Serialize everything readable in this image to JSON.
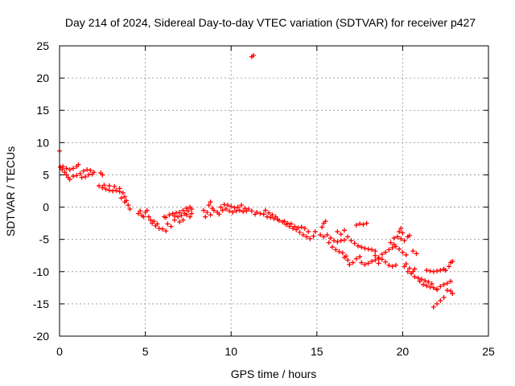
{
  "chart_data": {
    "type": "scatter",
    "title": "Day 214 of 2024, Sidereal Day-to-day VTEC variation (SDTVAR) for receiver p427",
    "xlabel": "GPS time / hours",
    "ylabel": "SDTVAR / TECUs",
    "xlim": [
      0,
      25
    ],
    "ylim": [
      -20,
      25
    ],
    "xticks": [
      0,
      5,
      10,
      15,
      20,
      25
    ],
    "yticks": [
      -20,
      -15,
      -10,
      -5,
      0,
      5,
      10,
      15,
      20,
      25
    ],
    "grid": true,
    "marker": "+",
    "color": "#ff0000",
    "series": [
      {
        "name": "p427",
        "points": [
          [
            0.0,
            8.7
          ],
          [
            0.05,
            6.2
          ],
          [
            0.15,
            5.8
          ],
          [
            0.3,
            5.4
          ],
          [
            0.4,
            5.0
          ],
          [
            0.5,
            4.6
          ],
          [
            0.6,
            4.3
          ],
          [
            0.2,
            6.3
          ],
          [
            0.4,
            6.0
          ],
          [
            0.6,
            5.8
          ],
          [
            0.8,
            6.0
          ],
          [
            1.0,
            6.3
          ],
          [
            1.1,
            6.6
          ],
          [
            0.8,
            4.8
          ],
          [
            1.0,
            4.9
          ],
          [
            1.2,
            5.2
          ],
          [
            1.4,
            5.6
          ],
          [
            1.6,
            5.8
          ],
          [
            1.8,
            5.7
          ],
          [
            2.0,
            5.4
          ],
          [
            1.3,
            4.6
          ],
          [
            1.5,
            4.7
          ],
          [
            1.7,
            5.0
          ],
          [
            1.9,
            5.1
          ],
          [
            2.4,
            5.3
          ],
          [
            2.5,
            5.0
          ],
          [
            2.3,
            3.3
          ],
          [
            2.5,
            3.0
          ],
          [
            2.7,
            2.8
          ],
          [
            2.9,
            2.6
          ],
          [
            3.1,
            2.5
          ],
          [
            3.3,
            2.6
          ],
          [
            3.5,
            2.4
          ],
          [
            2.6,
            3.4
          ],
          [
            2.9,
            3.3
          ],
          [
            3.2,
            3.2
          ],
          [
            3.5,
            2.9
          ],
          [
            3.7,
            2.2
          ],
          [
            3.8,
            1.6
          ],
          [
            3.9,
            1.0
          ],
          [
            4.0,
            0.3
          ],
          [
            4.1,
            -0.3
          ],
          [
            3.6,
            1.4
          ],
          [
            3.8,
            0.8
          ],
          [
            4.6,
            -1.0
          ],
          [
            4.7,
            -0.6
          ],
          [
            4.8,
            -1.3
          ],
          [
            4.9,
            -1.5
          ],
          [
            5.0,
            -0.8
          ],
          [
            5.1,
            -0.5
          ],
          [
            5.2,
            -1.5
          ],
          [
            5.3,
            -2.0
          ],
          [
            5.4,
            -2.5
          ],
          [
            5.6,
            -2.9
          ],
          [
            5.8,
            -3.3
          ],
          [
            6.0,
            -3.4
          ],
          [
            6.2,
            -3.7
          ],
          [
            5.5,
            -2.2
          ],
          [
            5.7,
            -2.6
          ],
          [
            6.1,
            -1.5
          ],
          [
            6.3,
            -2.6
          ],
          [
            6.5,
            -3.0
          ],
          [
            6.7,
            -2.0
          ],
          [
            6.2,
            -1.6
          ],
          [
            6.4,
            -1.2
          ],
          [
            6.6,
            -1.0
          ],
          [
            6.8,
            -0.9
          ],
          [
            7.0,
            -0.8
          ],
          [
            7.2,
            -0.5
          ],
          [
            7.4,
            -0.2
          ],
          [
            6.7,
            -1.4
          ],
          [
            6.9,
            -1.5
          ],
          [
            7.1,
            -1.3
          ],
          [
            7.3,
            -1.0
          ],
          [
            7.5,
            -0.6
          ],
          [
            7.6,
            0.0
          ],
          [
            7.7,
            -1.0
          ],
          [
            7.0,
            -2.3
          ],
          [
            7.2,
            -2.0
          ],
          [
            7.4,
            -1.2
          ],
          [
            7.6,
            -1.5
          ],
          [
            7.7,
            -0.3
          ],
          [
            8.4,
            -0.5
          ],
          [
            8.5,
            -1.5
          ],
          [
            8.6,
            -0.8
          ],
          [
            8.8,
            -1.2
          ],
          [
            9.0,
            -0.5
          ],
          [
            9.2,
            -0.8
          ],
          [
            8.7,
            0.3
          ],
          [
            8.8,
            0.8
          ],
          [
            8.9,
            -0.2
          ],
          [
            9.3,
            -1.1
          ],
          [
            9.5,
            -0.5
          ],
          [
            9.7,
            -0.3
          ],
          [
            9.4,
            0.0
          ],
          [
            9.6,
            0.4
          ],
          [
            9.8,
            0.3
          ],
          [
            10.0,
            0.1
          ],
          [
            10.2,
            -0.1
          ],
          [
            10.4,
            0.0
          ],
          [
            9.9,
            -0.6
          ],
          [
            10.1,
            -0.8
          ],
          [
            10.3,
            -0.6
          ],
          [
            10.5,
            -0.5
          ],
          [
            10.7,
            -0.7
          ],
          [
            10.9,
            -0.6
          ],
          [
            10.6,
            0.3
          ],
          [
            10.8,
            -0.2
          ],
          [
            11.0,
            -0.3
          ],
          [
            11.2,
            -0.6
          ],
          [
            11.4,
            -1.1
          ],
          [
            11.5,
            -0.8
          ],
          [
            11.2,
            23.3
          ],
          [
            11.3,
            23.5
          ],
          [
            11.7,
            -1.0
          ],
          [
            11.9,
            -1.1
          ],
          [
            12.1,
            -1.5
          ],
          [
            12.3,
            -1.6
          ],
          [
            12.5,
            -1.8
          ],
          [
            12.7,
            -1.9
          ],
          [
            12.0,
            -0.5
          ],
          [
            12.2,
            -0.9
          ],
          [
            12.4,
            -1.2
          ],
          [
            12.6,
            -1.5
          ],
          [
            12.8,
            -2.1
          ],
          [
            13.0,
            -2.3
          ],
          [
            13.1,
            -2.2
          ],
          [
            13.3,
            -2.5
          ],
          [
            13.5,
            -2.6
          ],
          [
            13.7,
            -3.0
          ],
          [
            13.9,
            -3.2
          ],
          [
            14.1,
            -3.1
          ],
          [
            13.2,
            -2.7
          ],
          [
            13.4,
            -3.0
          ],
          [
            13.6,
            -3.3
          ],
          [
            13.8,
            -3.5
          ],
          [
            14.0,
            -3.9
          ],
          [
            14.2,
            -4.3
          ],
          [
            14.3,
            -3.3
          ],
          [
            14.4,
            -4.6
          ],
          [
            14.6,
            -4.9
          ],
          [
            14.8,
            -4.5
          ],
          [
            14.9,
            -3.8
          ],
          [
            14.5,
            -3.8
          ],
          [
            15.3,
            -3.1
          ],
          [
            15.4,
            -2.5
          ],
          [
            15.5,
            -2.2
          ],
          [
            15.2,
            -4.3
          ],
          [
            15.4,
            -4.6
          ],
          [
            15.6,
            -4.3
          ],
          [
            15.8,
            -4.8
          ],
          [
            16.0,
            -5.2
          ],
          [
            16.2,
            -5.4
          ],
          [
            16.4,
            -5.2
          ],
          [
            16.6,
            -5.1
          ],
          [
            15.7,
            -5.5
          ],
          [
            15.9,
            -6.2
          ],
          [
            16.1,
            -6.6
          ],
          [
            16.3,
            -6.9
          ],
          [
            16.5,
            -7.1
          ],
          [
            16.7,
            -7.6
          ],
          [
            16.2,
            -3.8
          ],
          [
            16.4,
            -4.2
          ],
          [
            16.6,
            -3.6
          ],
          [
            16.8,
            -4.6
          ],
          [
            17.0,
            -5.2
          ],
          [
            17.2,
            -5.6
          ],
          [
            16.6,
            -7.8
          ],
          [
            16.8,
            -8.2
          ],
          [
            16.9,
            -8.9
          ],
          [
            17.1,
            -8.6
          ],
          [
            17.3,
            -8.0
          ],
          [
            17.5,
            -7.7
          ],
          [
            17.4,
            -6.0
          ],
          [
            17.6,
            -6.2
          ],
          [
            17.8,
            -6.4
          ],
          [
            18.0,
            -6.5
          ],
          [
            18.2,
            -6.6
          ],
          [
            18.4,
            -6.8
          ],
          [
            17.6,
            -8.6
          ],
          [
            17.8,
            -8.9
          ],
          [
            18.0,
            -8.7
          ],
          [
            18.2,
            -8.4
          ],
          [
            18.4,
            -8.2
          ],
          [
            18.6,
            -8.0
          ],
          [
            17.3,
            -2.8
          ],
          [
            17.5,
            -2.6
          ],
          [
            17.7,
            -2.7
          ],
          [
            17.9,
            -2.5
          ],
          [
            18.4,
            -7.5
          ],
          [
            18.6,
            -7.8
          ],
          [
            18.8,
            -7.3
          ],
          [
            19.0,
            -7.0
          ],
          [
            19.2,
            -6.6
          ],
          [
            19.4,
            -6.3
          ],
          [
            18.6,
            -8.7
          ],
          [
            18.8,
            -8.1
          ],
          [
            19.0,
            -8.5
          ],
          [
            19.2,
            -9.0
          ],
          [
            19.4,
            -9.2
          ],
          [
            19.6,
            -9.0
          ],
          [
            19.3,
            -5.5
          ],
          [
            19.5,
            -5.8
          ],
          [
            19.6,
            -6.1
          ],
          [
            19.8,
            -6.5
          ],
          [
            20.0,
            -7.0
          ],
          [
            20.2,
            -7.4
          ],
          [
            19.5,
            -4.8
          ],
          [
            19.7,
            -4.6
          ],
          [
            19.9,
            -4.9
          ],
          [
            20.1,
            -5.2
          ],
          [
            20.3,
            -4.6
          ],
          [
            20.4,
            -4.4
          ],
          [
            19.8,
            -3.8
          ],
          [
            19.9,
            -3.3
          ],
          [
            20.0,
            -4.0
          ],
          [
            20.2,
            -8.8
          ],
          [
            20.4,
            -9.5
          ],
          [
            20.6,
            -10.0
          ],
          [
            20.1,
            -9.2
          ],
          [
            20.3,
            -10.0
          ],
          [
            20.5,
            -10.3
          ],
          [
            20.7,
            -9.6
          ],
          [
            20.8,
            -7.2
          ],
          [
            20.6,
            -6.8
          ],
          [
            20.7,
            -10.8
          ],
          [
            20.9,
            -11.0
          ],
          [
            21.1,
            -11.2
          ],
          [
            21.3,
            -11.4
          ],
          [
            21.5,
            -11.6
          ],
          [
            21.7,
            -11.9
          ],
          [
            21.0,
            -11.5
          ],
          [
            21.2,
            -12.0
          ],
          [
            21.4,
            -12.2
          ],
          [
            21.6,
            -12.4
          ],
          [
            21.8,
            -12.5
          ],
          [
            22.0,
            -12.7
          ],
          [
            21.4,
            -9.8
          ],
          [
            21.6,
            -9.9
          ],
          [
            21.8,
            -10.0
          ],
          [
            22.0,
            -9.9
          ],
          [
            22.2,
            -9.8
          ],
          [
            22.4,
            -9.6
          ],
          [
            22.0,
            -12.8
          ],
          [
            22.2,
            -12.3
          ],
          [
            22.4,
            -12.0
          ],
          [
            22.6,
            -11.8
          ],
          [
            22.8,
            -11.5
          ],
          [
            22.9,
            -13.4
          ],
          [
            21.8,
            -15.5
          ],
          [
            22.0,
            -15.0
          ],
          [
            22.2,
            -14.5
          ],
          [
            22.4,
            -14.0
          ],
          [
            22.5,
            -9.8
          ],
          [
            22.7,
            -9.2
          ],
          [
            22.8,
            -8.6
          ],
          [
            22.9,
            -8.4
          ],
          [
            22.6,
            -12.9
          ],
          [
            22.8,
            -13.0
          ]
        ]
      }
    ]
  }
}
